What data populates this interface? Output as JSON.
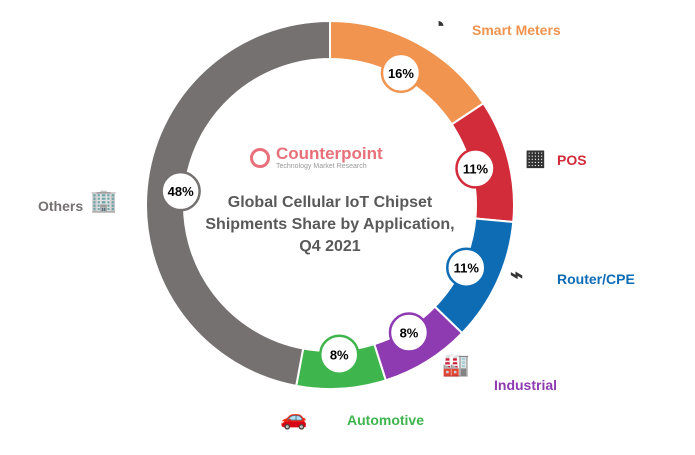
{
  "chart_data": {
    "type": "pie",
    "title": "Global Cellular IoT Chipset Shipments Share by Application, Q4 2021",
    "categories": [
      "Smart Meters",
      "POS",
      "Router/CPE",
      "Industrial",
      "Automotive",
      "Others"
    ],
    "values": [
      16,
      11,
      11,
      8,
      8,
      48
    ],
    "data_labels": [
      "16%",
      "11%",
      "11%",
      "8%",
      "8%",
      "48%"
    ],
    "colors": [
      "#f0944f",
      "#d22b3a",
      "#0e6cb5",
      "#8e3ab0",
      "#3fb54e",
      "#767171"
    ],
    "icons": [
      "gauge-meter-icon",
      "pos-terminal-icon",
      "router-icon",
      "factory-icon",
      "car-icon",
      "building-people-icon"
    ]
  },
  "logo": {
    "name": "Counterpoint",
    "tagline": "Technology Market Research"
  }
}
